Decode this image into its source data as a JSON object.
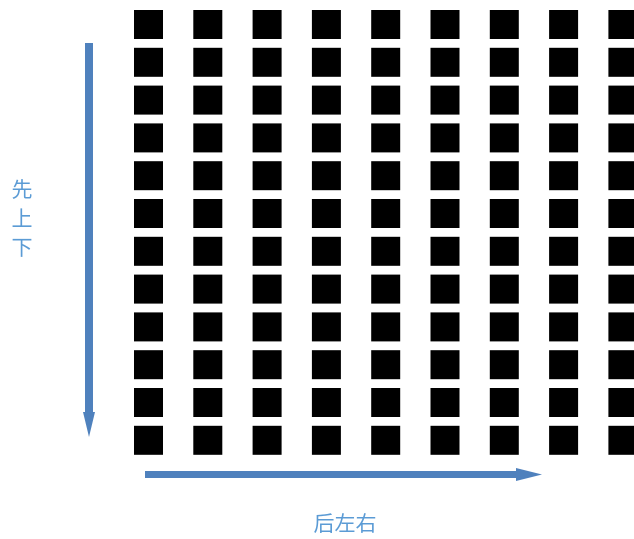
{
  "grid": {
    "rows": 12,
    "cols": 9,
    "square_color": "#000000"
  },
  "arrows": {
    "color": "#4f81bd",
    "vertical_direction": "down",
    "horizontal_direction": "right"
  },
  "labels": {
    "vertical": [
      "先",
      "上",
      "下"
    ],
    "horizontal": "后左右",
    "color": "#5b9bd5"
  }
}
